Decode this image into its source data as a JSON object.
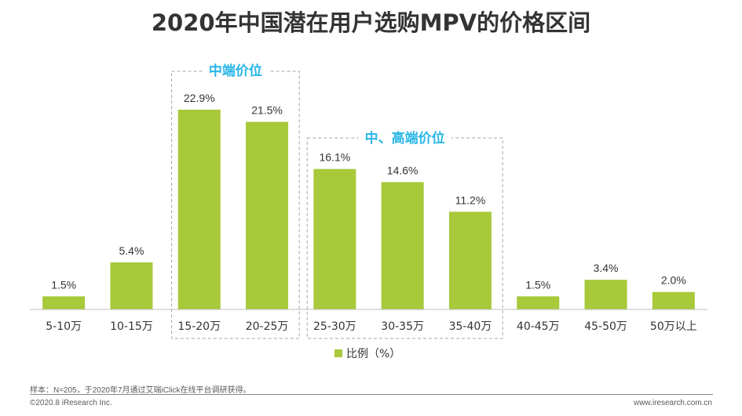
{
  "title": "2020年中国潜在用户选购MPV的价格区间",
  "chart_data": {
    "type": "bar",
    "categories": [
      "5-10万",
      "10-15万",
      "15-20万",
      "20-25万",
      "25-30万",
      "30-35万",
      "35-40万",
      "40-45万",
      "45-50万",
      "50万以上"
    ],
    "values": [
      1.5,
      5.4,
      22.9,
      21.5,
      16.1,
      14.6,
      11.2,
      1.5,
      3.4,
      2.0
    ],
    "value_labels": [
      "1.5%",
      "5.4%",
      "22.9%",
      "21.5%",
      "16.1%",
      "14.6%",
      "11.2%",
      "1.5%",
      "3.4%",
      "2.0%"
    ],
    "series": [
      {
        "name": "比例（%）"
      }
    ],
    "ylim": [
      0,
      25
    ],
    "bar_color": "#a7c93a",
    "legend_position": "bottom",
    "annotations": [
      {
        "label": "中端价位",
        "categories": [
          "15-20万",
          "20-25万"
        ]
      },
      {
        "label": "中、高端价位",
        "categories": [
          "25-30万",
          "30-35万",
          "35-40万"
        ]
      }
    ],
    "annotation_color": "#29b6e6"
  },
  "note": "样本：N=205，于2020年7月通过艾瑞iClick在线平台调研获得。",
  "footer": {
    "left": "©2020.8 iResearch Inc.",
    "right": "www.iresearch.com.cn"
  }
}
